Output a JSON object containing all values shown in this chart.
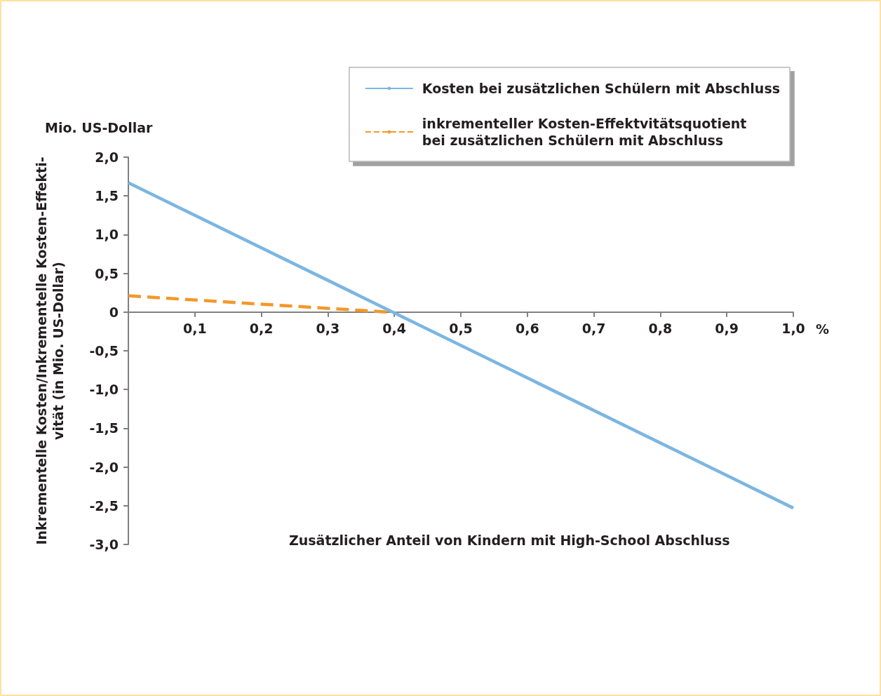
{
  "chart_data": {
    "type": "line",
    "xlabel": "Zusätzlicher Anteil von Kindern mit High-School Abschluss",
    "ylabel": "Inkrementelle Kosten/Inkrementelle Kosten-Effekti-\nvität (in Mio. US-Dollar)",
    "annotations": [
      "Mio. US-Dollar",
      "%"
    ],
    "series": [
      {
        "name": "Kosten bei zusätzlichen Schülern mit Abschluss",
        "color": "#7cb6e2",
        "line_style": "solid",
        "x": [
          0,
          1.0
        ],
        "values": [
          1.67,
          -2.53
        ]
      },
      {
        "name": "inkrementeller Kosten-Effektvitätsquotient\nbei zusätzlichen Schülern mit Abschluss",
        "color": "#f3982a",
        "line_style": "dashed",
        "x": [
          0,
          0.39
        ],
        "values": [
          0.21,
          0
        ]
      }
    ],
    "xlim": [
      0,
      1.0
    ],
    "xticks": [
      {
        "value": 0,
        "label": null
      },
      {
        "value": 0.1,
        "label": "0,1"
      },
      {
        "value": 0.2,
        "label": "0,2"
      },
      {
        "value": 0.3,
        "label": "0,3"
      },
      {
        "value": 0.4,
        "label": "0,4"
      },
      {
        "value": 0.5,
        "label": "0,5"
      },
      {
        "value": 0.6,
        "label": "0,6"
      },
      {
        "value": 0.7,
        "label": "0,7"
      },
      {
        "value": 0.8,
        "label": "0,8"
      },
      {
        "value": 0.9,
        "label": "0,9"
      },
      {
        "value": 1.0,
        "label": "1,0"
      }
    ],
    "ylim": [
      -3.0,
      2.0
    ],
    "yticks": [
      {
        "value": -3,
        "label": "-3,0"
      },
      {
        "value": -2.5,
        "label": "-2,5"
      },
      {
        "value": -2,
        "label": "-2,0"
      },
      {
        "value": -1.5,
        "label": "-1,5"
      },
      {
        "value": -1,
        "label": "-1,0"
      },
      {
        "value": -0.5,
        "label": "-0,5"
      },
      0,
      {
        "value": 0.5,
        "label": "0,5"
      },
      {
        "value": 1,
        "label": "1,0"
      },
      {
        "value": 1.5,
        "label": "1,5"
      },
      {
        "value": 2,
        "label": "2,0"
      }
    ],
    "grid": false,
    "legend": "top right",
    "marker": "none"
  }
}
